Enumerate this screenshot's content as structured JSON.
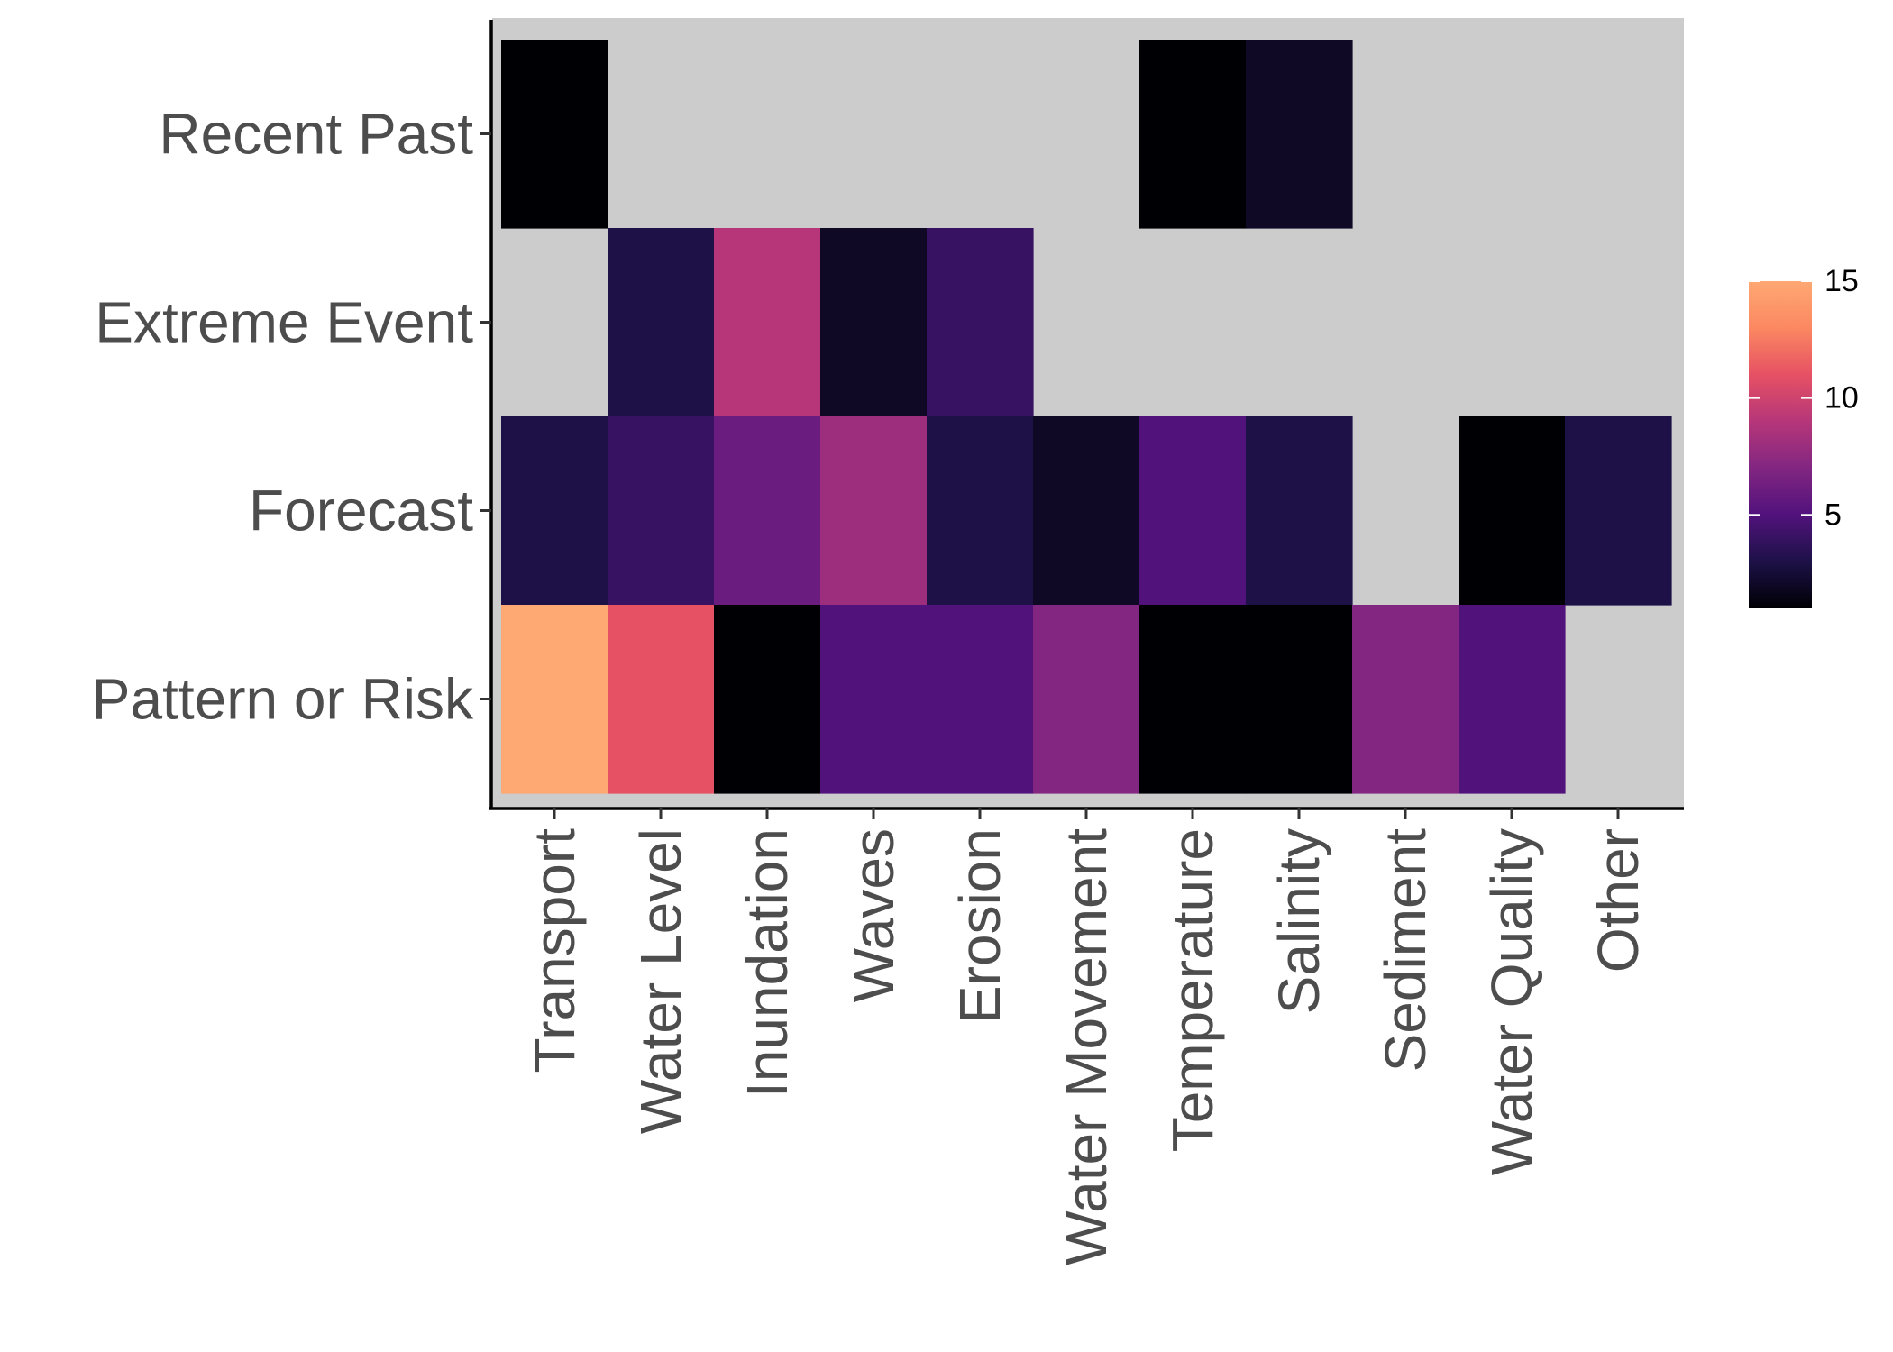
{
  "chart_data": {
    "type": "heatmap",
    "title": "",
    "xlabel": "",
    "ylabel": "",
    "x_categories": [
      "Transport",
      "Water Level",
      "Inundation",
      "Waves",
      "Erosion",
      "Water Movement",
      "Temperature",
      "Salinity",
      "Sediment",
      "Water Quality",
      "Other"
    ],
    "y_categories": [
      "Recent Past",
      "Extreme Event",
      "Forecast",
      "Pattern or Risk"
    ],
    "values": [
      [
        1,
        null,
        null,
        null,
        null,
        null,
        1,
        2,
        null,
        null,
        null
      ],
      [
        null,
        3,
        9,
        2,
        4,
        null,
        null,
        null,
        null,
        null,
        null
      ],
      [
        3,
        4,
        6,
        8,
        3,
        2,
        5,
        3,
        null,
        1,
        3
      ],
      [
        15,
        11,
        1,
        5,
        5,
        7,
        1,
        1,
        7,
        5,
        null
      ]
    ],
    "missing_color": "#cccccc",
    "color_scale": {
      "name": "magma",
      "min": 1,
      "max": 15,
      "ticks": [
        5,
        10,
        15
      ],
      "stops": [
        "#000004",
        "#1d1147",
        "#51127c",
        "#822681",
        "#b63679",
        "#e65164",
        "#fb8861",
        "#fea873"
      ]
    },
    "legend": {
      "position": "right",
      "ticks": [
        "5",
        "10",
        "15"
      ]
    }
  }
}
